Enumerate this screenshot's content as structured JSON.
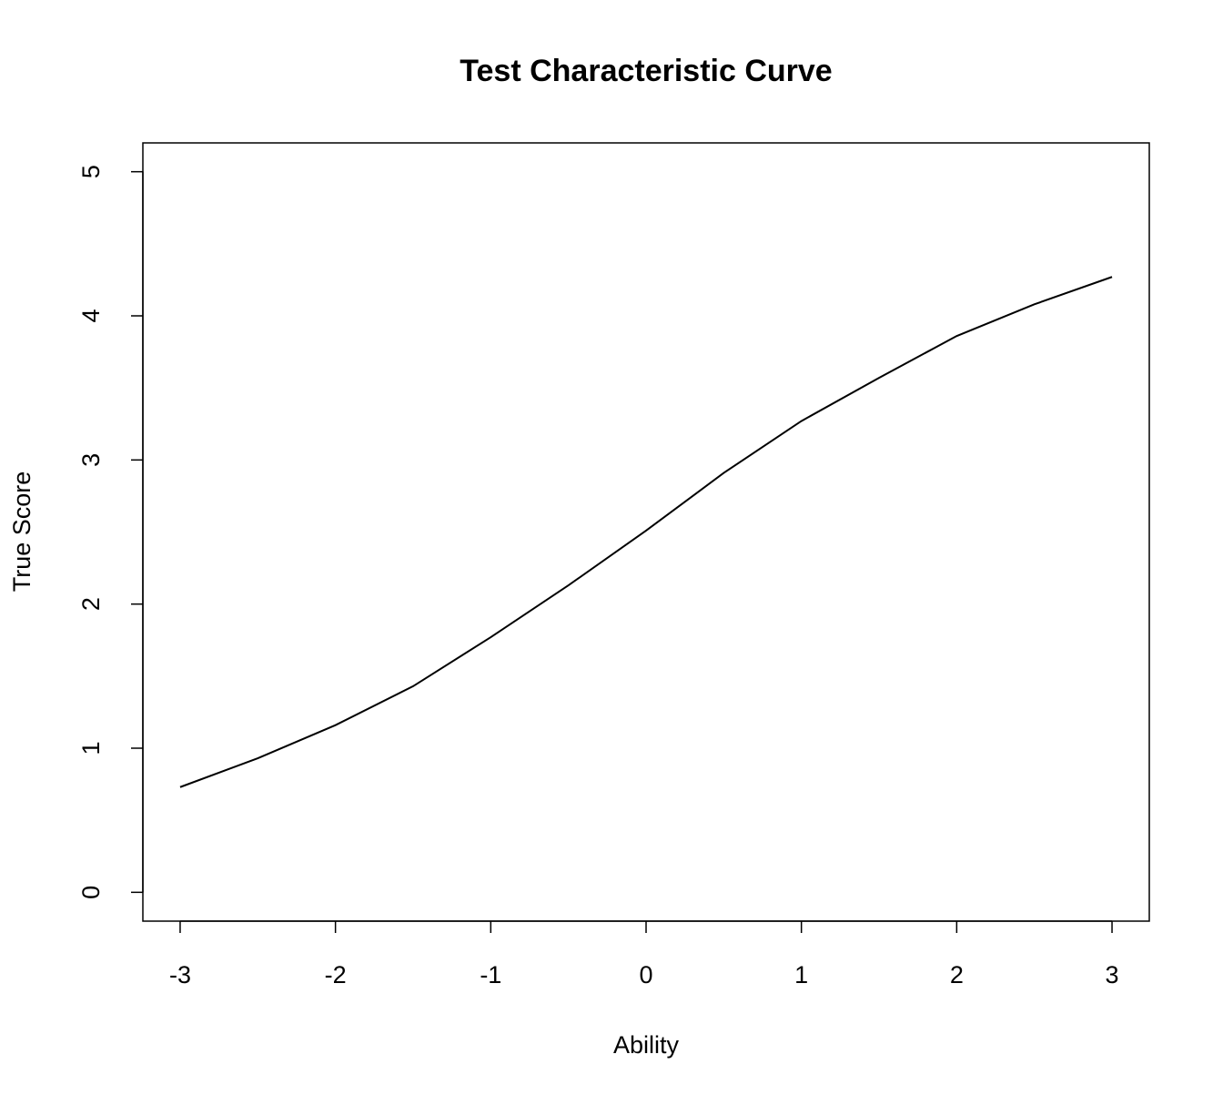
{
  "chart_data": {
    "type": "line",
    "title": "Test Characteristic Curve",
    "x_label": "Ability",
    "y_label": "True Score",
    "x": [
      -3,
      -2.5,
      -2,
      -1.5,
      -1,
      -0.5,
      0,
      0.5,
      1,
      1.5,
      2,
      2.5,
      3
    ],
    "values": [
      0.73,
      0.93,
      1.16,
      1.43,
      1.77,
      2.13,
      2.51,
      2.91,
      3.27,
      3.57,
      3.86,
      4.08,
      4.27
    ],
    "color": "#000000",
    "xlim": [
      -3.24,
      3.24
    ],
    "ylim": [
      -0.2,
      5.2
    ],
    "xticks": [
      -3,
      -2,
      -1,
      0,
      1,
      2,
      3
    ],
    "yticks": [
      0,
      1,
      2,
      3,
      4,
      5
    ]
  }
}
